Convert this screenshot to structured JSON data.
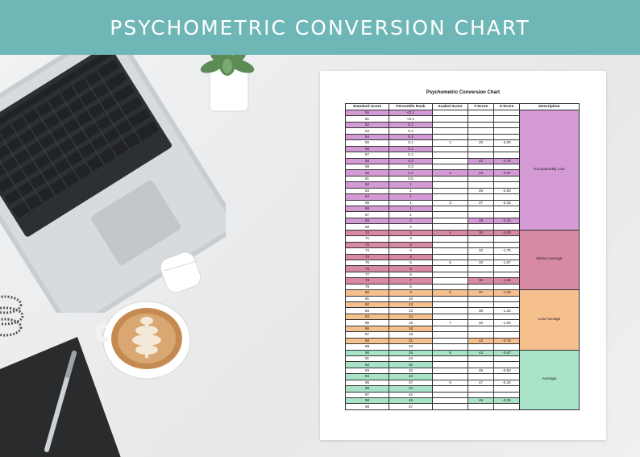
{
  "banner": {
    "title": "PSYCHOMETRIC CONVERSION CHART"
  },
  "document": {
    "title": "Psychometric Conversion Chart",
    "columns": [
      "Standard Score",
      "Percentile Rank",
      "Scaled Score",
      "T-Score",
      "Z-Score",
      "Description"
    ],
    "colors": {
      "exceptionally_low": "#d39ad6",
      "below_average": "#d889a4",
      "low_average": "#f6bf8e",
      "average": "#a9e3c7"
    },
    "bands": [
      {
        "label": "Exceptionally Low",
        "color_key": "exceptionally_low",
        "rows": 20
      },
      {
        "label": "Below Average",
        "color_key": "below_average",
        "rows": 10
      },
      {
        "label": "Low Average",
        "color_key": "low_average",
        "rows": 10
      },
      {
        "label": "Average",
        "color_key": "average",
        "rows": 10
      }
    ],
    "rows": [
      [
        "50",
        "<0.1",
        "",
        "",
        "",
        ""
      ],
      [
        "51",
        "<0.1",
        "",
        "",
        "",
        ""
      ],
      [
        "52",
        "0.1",
        "",
        "",
        "",
        ""
      ],
      [
        "53",
        "0.1",
        "",
        "",
        "",
        ""
      ],
      [
        "54",
        "0.1",
        "",
        "",
        "",
        ""
      ],
      [
        "55",
        "0.1",
        "1",
        "20",
        "-3.00",
        ""
      ],
      [
        "56",
        "0.1",
        "",
        "",
        "",
        ""
      ],
      [
        "57",
        "0.1",
        "",
        "",
        "",
        ""
      ],
      [
        "58",
        "0.2",
        "",
        "22",
        "-2.75",
        ""
      ],
      [
        "59",
        "0.3",
        "",
        "",
        "",
        ""
      ],
      [
        "60",
        "0.4",
        "2",
        "23",
        "-2.67",
        ""
      ],
      [
        "61",
        "0.5",
        "",
        "",
        "",
        ""
      ],
      [
        "62",
        "1",
        "",
        "",
        "",
        ""
      ],
      [
        "63",
        "1",
        "",
        "25",
        "-2.50",
        ""
      ],
      [
        "64",
        "1",
        "",
        "",
        "",
        ""
      ],
      [
        "65",
        "1",
        "3",
        "27",
        "-2.33",
        ""
      ],
      [
        "66",
        "1",
        "",
        "",
        "",
        ""
      ],
      [
        "67",
        "1",
        "",
        "",
        "",
        ""
      ],
      [
        "68",
        "2",
        "",
        "28",
        "-2.25",
        ""
      ],
      [
        "69",
        "2",
        "",
        "",
        "",
        ""
      ],
      [
        "70",
        "2",
        "4",
        "30",
        "-2.00",
        ""
      ],
      [
        "71",
        "3",
        "",
        "",
        "",
        ""
      ],
      [
        "72",
        "3",
        "",
        "",
        "",
        ""
      ],
      [
        "73",
        "4",
        "",
        "32",
        "-1.75",
        ""
      ],
      [
        "74",
        "4",
        "",
        "",
        "",
        ""
      ],
      [
        "75",
        "5",
        "5",
        "33",
        "-1.67",
        ""
      ],
      [
        "76",
        "5",
        "",
        "",
        "",
        ""
      ],
      [
        "77",
        "6",
        "",
        "",
        "",
        ""
      ],
      [
        "78",
        "7",
        "",
        "35",
        "-1.50",
        ""
      ],
      [
        "79",
        "8",
        "",
        "",
        "",
        ""
      ],
      [
        "80",
        "9",
        "6",
        "37",
        "-1.33",
        ""
      ],
      [
        "81",
        "10",
        "",
        "",
        "",
        ""
      ],
      [
        "82",
        "12",
        "",
        "",
        "",
        ""
      ],
      [
        "83",
        "13",
        "",
        "38",
        "-1.25",
        ""
      ],
      [
        "84",
        "14",
        "",
        "",
        "",
        ""
      ],
      [
        "85",
        "16",
        "7",
        "40",
        "-1.00",
        ""
      ],
      [
        "86",
        "18",
        "",
        "",
        "",
        ""
      ],
      [
        "87",
        "19",
        "",
        "",
        "",
        ""
      ],
      [
        "88",
        "21",
        "",
        "42",
        "-0.75",
        ""
      ],
      [
        "89",
        "23",
        "",
        "",
        "",
        ""
      ],
      [
        "90",
        "25",
        "8",
        "43",
        "-0.67",
        ""
      ],
      [
        "91",
        "24",
        "",
        "",
        "",
        ""
      ],
      [
        "92",
        "30",
        "",
        "",
        "",
        ""
      ],
      [
        "93",
        "32",
        "",
        "45",
        "-0.50",
        ""
      ],
      [
        "94",
        "34",
        "",
        "",
        "",
        ""
      ],
      [
        "95",
        "37",
        "9",
        "47",
        "-0.33",
        ""
      ],
      [
        "96",
        "40",
        "",
        "",
        "",
        ""
      ],
      [
        "97",
        "42",
        "",
        "",
        "",
        ""
      ],
      [
        "98",
        "45",
        "",
        "48",
        "-0.25",
        ""
      ],
      [
        "99",
        "47",
        "",
        "",
        "",
        ""
      ]
    ]
  },
  "scene": {
    "objects": [
      "laptop-icon",
      "plant-icon",
      "earbuds-icon",
      "coffee-cup-icon",
      "notebook-icon",
      "pen-icon",
      "cable-icon"
    ]
  }
}
